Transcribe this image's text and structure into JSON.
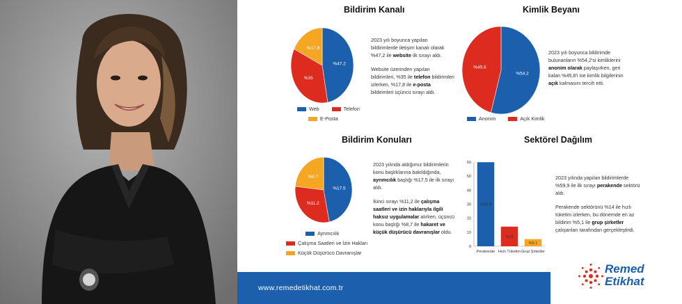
{
  "footer": {
    "url": "www.remedetikhat.com.tr"
  },
  "logo": {
    "line1": "Remed",
    "line2": "Etikhat",
    "icon": "dotted-flower-icon",
    "color": "#1c5fac"
  },
  "colors": {
    "blue": "#1c5fac",
    "red": "#de2b1f",
    "orange": "#f5a623"
  },
  "panels": {
    "kanal": {
      "title": "Bildirim Kanalı",
      "text1a": "2023 yılı boyunca yapılan bildirimlerde iletişim kanalı olarak %47,2 ile ",
      "text1b": "website",
      "text1c": " ilk sırayı aldı.",
      "text2a": "Website üzerinden yapılan bildirimleri, %35 ile ",
      "text2b": "telefon",
      "text2c": " bildirimleri izlerken, %17,8 ile ",
      "text2d": "e-posta",
      "text2e": " bildirimleri üçüncü sırayı aldı."
    },
    "kimlik": {
      "title": "Kimlik Beyanı",
      "text1a": "2023 yılı boyunca bildirimde bulunanların %54,2'si kimliklerini ",
      "text1b": "anonim olarak",
      "text1c": " paylaşırken, geri kalan %45,8'i ise kimlik bilgilerinin ",
      "text1d": "açık",
      "text1e": " kalmasını tercih etti."
    },
    "konular": {
      "title": "Bildirim Konuları",
      "text1a": "2023 yılında aldığımız bildirimlerin konu başlıklarına bakıldığında, ",
      "text1b": "ayrımcılık",
      "text1c": " başlığı %17,5 ile ilk sırayı aldı.",
      "text2a": "İkinci sırayı %11,2 ile ",
      "text2b": "çalışma saatleri ve izin haklarıyla ilgili haksız uygulamalar",
      "text2c": " alırken, üçüncü konu başlığı %8,7 ile ",
      "text2d": "hakaret ve küçük düşürücü davranışlar",
      "text2e": " oldu."
    },
    "sektor": {
      "title": "Sektörel Dağılım",
      "text1a": "2023 yılında yapılan bildirimlerde %59,9 ile ilk sırayı ",
      "text1b": "perakende",
      "text1c": " sektörü aldı.",
      "text2a": "Perakende sektörünü %14 ile hızlı tüketim izlerken, bu dönemde en az bildirim %5,1 ile ",
      "text2b": "grup şirketler",
      "text2c": " çalışanları tarafından gerçekleştirdi."
    }
  },
  "chart_data": [
    {
      "type": "pie",
      "title": "Bildirim Kanalı",
      "categories": [
        "Web",
        "Telefon",
        "E-Posta"
      ],
      "values": [
        47.2,
        35,
        17.8
      ],
      "labels": [
        "%47.2",
        "%35",
        "%17.8"
      ],
      "colors": [
        "#1c5fac",
        "#de2b1f",
        "#f5a623"
      ],
      "legend": "bottom"
    },
    {
      "type": "pie",
      "title": "Kimlik Beyanı",
      "categories": [
        "Anonim",
        "Açık Kimlik"
      ],
      "values": [
        54.2,
        45.8
      ],
      "labels": [
        "%54.2",
        "%45.8"
      ],
      "colors": [
        "#1c5fac",
        "#de2b1f"
      ],
      "legend": "bottom"
    },
    {
      "type": "pie",
      "title": "Bildirim Konuları",
      "categories": [
        "Ayrımcılık",
        "Çalışma Saatleri ve İzin Hakları",
        "Küçük Düşürücü Davranışlar"
      ],
      "values": [
        17.5,
        11.2,
        8.7
      ],
      "labels": [
        "%17.5",
        "%11.2",
        "%8.7"
      ],
      "colors": [
        "#1c5fac",
        "#de2b1f",
        "#f5a623"
      ],
      "legend": "bottom"
    },
    {
      "type": "bar",
      "title": "Sektörel Dağılım",
      "categories": [
        "Perakende",
        "Hızlı Tüketim",
        "Grup Şirketler"
      ],
      "values": [
        59.9,
        14,
        5.1
      ],
      "labels": [
        "%59.9",
        "%14",
        "%5.1"
      ],
      "colors": [
        "#1c5fac",
        "#de2b1f",
        "#f5a623"
      ],
      "ylim": [
        0,
        60
      ],
      "yticks": [
        0,
        10,
        20,
        30,
        40,
        50,
        60
      ],
      "grid": false
    }
  ]
}
